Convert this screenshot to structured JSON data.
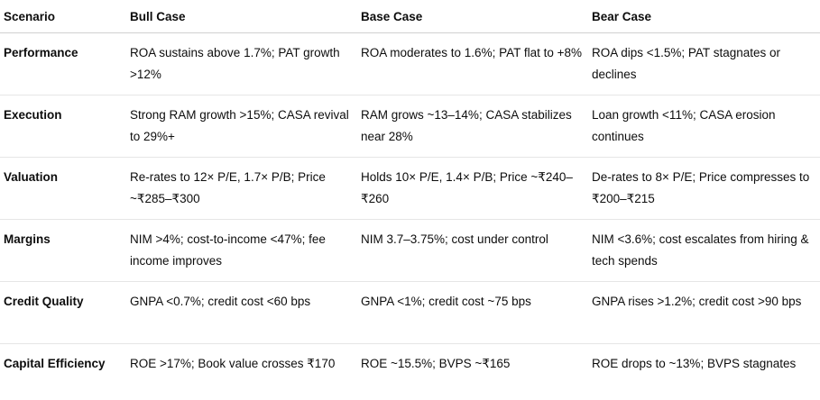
{
  "table": {
    "headers": [
      "Scenario",
      "Bull Case",
      "Base Case",
      "Bear Case"
    ],
    "rows": [
      {
        "scenario": "Performance",
        "bull": "ROA sustains above 1.7%; PAT growth >12%",
        "base": "ROA moderates to 1.6%; PAT flat to +8%",
        "bear": "ROA dips <1.5%; PAT stagnates or declines"
      },
      {
        "scenario": "Execution",
        "bull": "Strong RAM growth >15%; CASA revival to 29%+",
        "base": "RAM grows ~13–14%; CASA stabilizes near 28%",
        "bear": "Loan growth <11%; CASA erosion continues"
      },
      {
        "scenario": "Valuation",
        "bull": "Re-rates to 12× P/E, 1.7× P/B; Price ~₹285–₹300",
        "base": "Holds 10× P/E, 1.4× P/B; Price ~₹240–₹260",
        "bear": "De-rates to 8× P/E; Price compresses to ₹200–₹215"
      },
      {
        "scenario": "Margins",
        "bull": "NIM >4%; cost-to-income <47%; fee income improves",
        "base": "NIM 3.7–3.75%; cost under control",
        "bear": "NIM <3.6%; cost escalates from hiring & tech spends"
      },
      {
        "scenario": "Credit Quality",
        "bull": "GNPA <0.7%; credit cost <60 bps",
        "base": "GNPA <1%; credit cost ~75 bps",
        "bear": "GNPA rises >1.2%; credit cost >90 bps"
      },
      {
        "scenario": "Capital Efficiency",
        "bull": "ROE >17%; Book value crosses ₹170",
        "base": "ROE ~15.5%; BVPS ~₹165",
        "bear": "ROE drops to ~13%; BVPS stagnates"
      }
    ]
  }
}
